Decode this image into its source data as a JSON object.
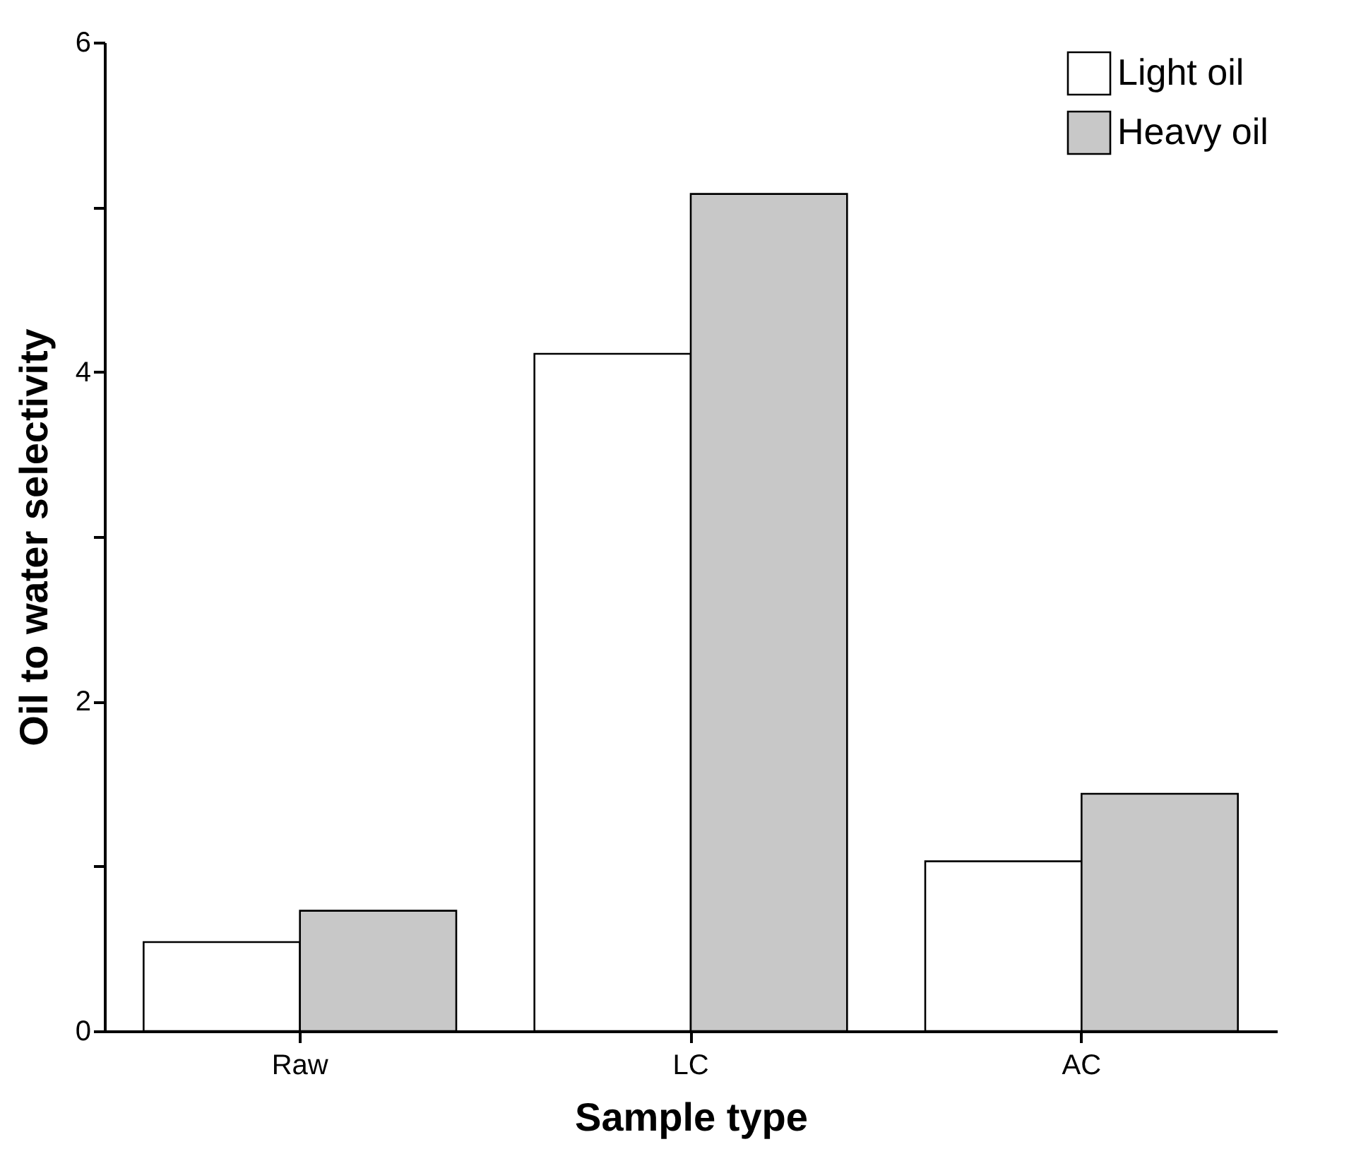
{
  "chart_data": {
    "type": "bar",
    "xlabel": "Sample type",
    "ylabel": "Oil to water selectivity",
    "categories": [
      "Raw",
      "LC",
      "AC"
    ],
    "series": [
      {
        "name": "Light oil",
        "color": "#ffffff",
        "values": [
          0.54,
          4.11,
          1.03
        ]
      },
      {
        "name": "Heavy oil",
        "color": "#c8c8c8",
        "values": [
          0.73,
          5.08,
          1.44
        ]
      }
    ],
    "ylim": [
      0,
      6
    ],
    "yticks": [
      0,
      {
        "value": 1,
        "label": null
      },
      2,
      {
        "value": 3,
        "label": null
      },
      4,
      {
        "value": 5,
        "label": null
      },
      6
    ],
    "grid": false,
    "legend": "top right"
  }
}
